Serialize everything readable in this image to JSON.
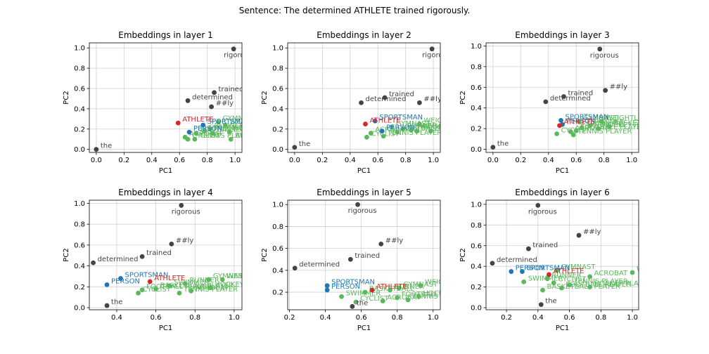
{
  "figure": {
    "suptitle": "Sentence: The determined ATHLETE trained rigorously."
  },
  "colors": {
    "sentence": "#444444",
    "athlete": "#d62728",
    "near": "#1f77b4",
    "other": "#5cb85c"
  },
  "chart_data": [
    {
      "type": "scatter",
      "title": "Embeddings in layer 1",
      "xlabel": "PC1",
      "ylabel": "PC2",
      "xlim": [
        -0.05,
        1.05
      ],
      "ylim": [
        -0.03,
        1.05
      ],
      "xticks": [
        0.0,
        0.2,
        0.4,
        0.6,
        0.8,
        1.0
      ],
      "yticks": [
        0.0,
        0.2,
        0.4,
        0.6,
        0.8,
        1.0
      ],
      "grid": true,
      "points": [
        {
          "label": "the",
          "x": 0.0,
          "y": 0.0,
          "group": "sentence"
        },
        {
          "label": "determined",
          "x": 0.66,
          "y": 0.48,
          "group": "sentence"
        },
        {
          "label": "trained",
          "x": 0.85,
          "y": 0.56,
          "group": "sentence"
        },
        {
          "label": "##ly",
          "x": 0.83,
          "y": 0.42,
          "group": "sentence"
        },
        {
          "label": "rigorous",
          "x": 0.99,
          "y": 0.99,
          "group": "sentence"
        },
        {
          "label": "ATHLETE",
          "x": 0.59,
          "y": 0.26,
          "group": "athlete"
        },
        {
          "label": "SPORTSMAN",
          "x": 0.77,
          "y": 0.24,
          "group": "near"
        },
        {
          "label": "PERSON",
          "x": 0.67,
          "y": 0.17,
          "group": "near"
        },
        {
          "label": "GYMNAST",
          "x": 0.88,
          "y": 0.27,
          "group": "other"
        },
        {
          "label": "WEIGHTLIFTER",
          "x": 0.93,
          "y": 0.24,
          "group": "other"
        },
        {
          "label": "RUNNER",
          "x": 0.82,
          "y": 0.2,
          "group": "other"
        },
        {
          "label": "SWIMMER",
          "x": 0.78,
          "y": 0.18,
          "group": "other"
        },
        {
          "label": "BASKETBALL PLAYER",
          "x": 0.84,
          "y": 0.16,
          "group": "other"
        },
        {
          "label": "HOCKEY PLAYER",
          "x": 0.96,
          "y": 0.17,
          "group": "other"
        },
        {
          "label": "FOOTBALL PLAYER",
          "x": 0.72,
          "y": 0.16,
          "group": "other"
        },
        {
          "label": "ACROBAT",
          "x": 0.64,
          "y": 0.12,
          "group": "other"
        },
        {
          "label": "CYCLIST",
          "x": 0.66,
          "y": 0.1,
          "group": "other"
        },
        {
          "label": "TENNIS PLAYER",
          "x": 0.71,
          "y": 0.1,
          "group": "other"
        },
        {
          "label": "BOXER",
          "x": 0.97,
          "y": 0.1,
          "group": "other"
        }
      ]
    },
    {
      "type": "scatter",
      "title": "Embeddings in layer 2",
      "xlabel": "PC1",
      "ylabel": "PC2",
      "xlim": [
        -0.05,
        1.05
      ],
      "ylim": [
        -0.03,
        1.05
      ],
      "xticks": [
        0.0,
        0.2,
        0.4,
        0.6,
        0.8,
        1.0
      ],
      "yticks": [
        0.0,
        0.2,
        0.4,
        0.6,
        0.8,
        1.0
      ],
      "grid": true,
      "points": [
        {
          "label": "the",
          "x": 0.0,
          "y": 0.02,
          "group": "sentence"
        },
        {
          "label": "determined",
          "x": 0.48,
          "y": 0.46,
          "group": "sentence"
        },
        {
          "label": "trained",
          "x": 0.65,
          "y": 0.51,
          "group": "sentence"
        },
        {
          "label": "##ly",
          "x": 0.9,
          "y": 0.46,
          "group": "sentence"
        },
        {
          "label": "rigorous",
          "x": 0.99,
          "y": 0.99,
          "group": "sentence"
        },
        {
          "label": "ATHLETE",
          "x": 0.51,
          "y": 0.25,
          "group": "athlete"
        },
        {
          "label": "SPORTSMAN",
          "x": 0.58,
          "y": 0.28,
          "group": "near"
        },
        {
          "label": "PERSON",
          "x": 0.63,
          "y": 0.18,
          "group": "near"
        },
        {
          "label": "WEIGHTLIFTER",
          "x": 0.9,
          "y": 0.25,
          "group": "other"
        },
        {
          "label": "GYMNAST",
          "x": 0.7,
          "y": 0.22,
          "group": "other"
        },
        {
          "label": "RUNNER",
          "x": 0.78,
          "y": 0.2,
          "group": "other"
        },
        {
          "label": "SWIMMER",
          "x": 0.84,
          "y": 0.19,
          "group": "other"
        },
        {
          "label": "BASKETBALL PLAYER",
          "x": 0.88,
          "y": 0.18,
          "group": "other"
        },
        {
          "label": "HOCKEY PLAYER",
          "x": 0.98,
          "y": 0.18,
          "group": "other"
        },
        {
          "label": "FOOTBALL PLAYER",
          "x": 0.74,
          "y": 0.17,
          "group": "other"
        },
        {
          "label": "ACROBAT",
          "x": 0.55,
          "y": 0.16,
          "group": "other"
        },
        {
          "label": "CYCLIST",
          "x": 0.52,
          "y": 0.12,
          "group": "other"
        },
        {
          "label": "TENNIS PLAYER",
          "x": 0.64,
          "y": 0.13,
          "group": "other"
        }
      ]
    },
    {
      "type": "scatter",
      "title": "Embeddings in layer 3",
      "xlabel": "PC1",
      "ylabel": "PC2",
      "xlim": [
        -0.05,
        1.05
      ],
      "ylim": [
        -0.03,
        1.03
      ],
      "xticks": [
        0.0,
        0.2,
        0.4,
        0.6,
        0.8,
        1.0
      ],
      "yticks": [
        0.0,
        0.2,
        0.4,
        0.6,
        0.8,
        1.0
      ],
      "grid": true,
      "points": [
        {
          "label": "the",
          "x": 0.0,
          "y": 0.02,
          "group": "sentence"
        },
        {
          "label": "determined",
          "x": 0.38,
          "y": 0.46,
          "group": "sentence"
        },
        {
          "label": "trained",
          "x": 0.51,
          "y": 0.51,
          "group": "sentence"
        },
        {
          "label": "##ly",
          "x": 0.81,
          "y": 0.57,
          "group": "sentence"
        },
        {
          "label": "rigorous",
          "x": 0.77,
          "y": 0.97,
          "group": "sentence"
        },
        {
          "label": "ATHLETE",
          "x": 0.48,
          "y": 0.23,
          "group": "athlete"
        },
        {
          "label": "SPORTSMAN",
          "x": 0.49,
          "y": 0.28,
          "group": "near"
        },
        {
          "label": "PERSON",
          "x": 0.5,
          "y": 0.24,
          "group": "near"
        },
        {
          "label": "GYMNAST",
          "x": 0.62,
          "y": 0.27,
          "group": "other"
        },
        {
          "label": "WEIGHTLIFTER",
          "x": 0.78,
          "y": 0.27,
          "group": "other"
        },
        {
          "label": "RUNNER",
          "x": 0.7,
          "y": 0.23,
          "group": "other"
        },
        {
          "label": "SWIMMER",
          "x": 0.64,
          "y": 0.21,
          "group": "other"
        },
        {
          "label": "BASKETBALL PLAYER",
          "x": 0.84,
          "y": 0.22,
          "group": "other"
        },
        {
          "label": "HOCKEY PLAYER",
          "x": 0.76,
          "y": 0.2,
          "group": "other"
        },
        {
          "label": "FOOTBALL PLAYER",
          "x": 0.6,
          "y": 0.18,
          "group": "other"
        },
        {
          "label": "ACROBAT",
          "x": 0.56,
          "y": 0.17,
          "group": "other"
        },
        {
          "label": "CYCLIST",
          "x": 0.46,
          "y": 0.15,
          "group": "other"
        },
        {
          "label": "TENNIS PLAYER",
          "x": 0.58,
          "y": 0.14,
          "group": "other"
        }
      ]
    },
    {
      "type": "scatter",
      "title": "Embeddings in layer 4",
      "xlabel": "PC1",
      "ylabel": "PC2",
      "xlim": [
        0.26,
        1.04
      ],
      "ylim": [
        -0.02,
        1.03
      ],
      "xticks": [
        0.4,
        0.6,
        0.8,
        1.0
      ],
      "yticks": [
        0.0,
        0.2,
        0.4,
        0.6,
        0.8,
        1.0
      ],
      "grid": true,
      "points": [
        {
          "label": "the",
          "x": 0.35,
          "y": 0.02,
          "group": "sentence"
        },
        {
          "label": "determined",
          "x": 0.28,
          "y": 0.43,
          "group": "sentence"
        },
        {
          "label": "trained",
          "x": 0.53,
          "y": 0.49,
          "group": "sentence"
        },
        {
          "label": "##ly",
          "x": 0.68,
          "y": 0.61,
          "group": "sentence"
        },
        {
          "label": "rigorous",
          "x": 0.73,
          "y": 0.98,
          "group": "sentence"
        },
        {
          "label": "ATHLETE",
          "x": 0.57,
          "y": 0.25,
          "group": "athlete"
        },
        {
          "label": "SPORTSMAN",
          "x": 0.42,
          "y": 0.28,
          "group": "near"
        },
        {
          "label": "PERSON",
          "x": 0.35,
          "y": 0.22,
          "group": "near"
        },
        {
          "label": "GYMNAST",
          "x": 0.87,
          "y": 0.27,
          "group": "other"
        },
        {
          "label": "WEIGHTLIFTER",
          "x": 0.94,
          "y": 0.27,
          "group": "other"
        },
        {
          "label": "RUNNER",
          "x": 0.75,
          "y": 0.23,
          "group": "other"
        },
        {
          "label": "SWIMMER",
          "x": 0.67,
          "y": 0.21,
          "group": "other"
        },
        {
          "label": "BASKETBALL PLAYER",
          "x": 0.6,
          "y": 0.18,
          "group": "other"
        },
        {
          "label": "HOCKEY PLAYER",
          "x": 0.88,
          "y": 0.19,
          "group": "other"
        },
        {
          "label": "FOOTBALL PLAYER",
          "x": 0.53,
          "y": 0.17,
          "group": "other"
        },
        {
          "label": "ACROBAT",
          "x": 0.78,
          "y": 0.16,
          "group": "other"
        },
        {
          "label": "CYCLIST",
          "x": 0.51,
          "y": 0.14,
          "group": "other"
        },
        {
          "label": "TENNIS PLAYER",
          "x": 0.72,
          "y": 0.14,
          "group": "other"
        }
      ]
    },
    {
      "type": "scatter",
      "title": "Embeddings in layer 5",
      "xlabel": "PC1",
      "ylabel": "PC2",
      "xlim": [
        0.19,
        1.04
      ],
      "ylim": [
        0.04,
        1.04
      ],
      "xticks": [
        0.2,
        0.4,
        0.6,
        0.8,
        1.0
      ],
      "yticks": [
        0.2,
        0.4,
        0.6,
        0.8,
        1.0
      ],
      "grid": true,
      "points": [
        {
          "label": "the",
          "x": 0.55,
          "y": 0.07,
          "group": "sentence"
        },
        {
          "label": "determined",
          "x": 0.23,
          "y": 0.42,
          "group": "sentence"
        },
        {
          "label": "trained",
          "x": 0.54,
          "y": 0.5,
          "group": "sentence"
        },
        {
          "label": "##ly",
          "x": 0.71,
          "y": 0.64,
          "group": "sentence"
        },
        {
          "label": "rigorous",
          "x": 0.58,
          "y": 1.0,
          "group": "sentence"
        },
        {
          "label": "ATHLETE",
          "x": 0.66,
          "y": 0.22,
          "group": "athlete"
        },
        {
          "label": "SPORTSMAN",
          "x": 0.41,
          "y": 0.26,
          "group": "near"
        },
        {
          "label": "PERSON",
          "x": 0.41,
          "y": 0.22,
          "group": "near"
        },
        {
          "label": "WEIGHTLIFTER",
          "x": 0.93,
          "y": 0.26,
          "group": "other"
        },
        {
          "label": "GYMNAST",
          "x": 0.81,
          "y": 0.24,
          "group": "other"
        },
        {
          "label": "RUNNER",
          "x": 0.76,
          "y": 0.22,
          "group": "other"
        },
        {
          "label": "BASKETBALL",
          "x": 0.62,
          "y": 0.2,
          "group": "other"
        },
        {
          "label": "HOCKEY PLAYER",
          "x": 0.92,
          "y": 0.16,
          "group": "other"
        },
        {
          "label": "FOOTBALL PLAYER",
          "x": 0.8,
          "y": 0.15,
          "group": "other"
        },
        {
          "label": "ACROBAT",
          "x": 0.72,
          "y": 0.12,
          "group": "other"
        },
        {
          "label": "CYCLIST",
          "x": 0.57,
          "y": 0.11,
          "group": "other"
        },
        {
          "label": "SWIMMER",
          "x": 0.49,
          "y": 0.16,
          "group": "other"
        },
        {
          "label": "TENNIS PLAYER",
          "x": 0.86,
          "y": 0.13,
          "group": "other"
        }
      ]
    },
    {
      "type": "scatter",
      "title": "Embeddings in layer 6",
      "xlabel": "PC1",
      "ylabel": "PC2",
      "xlim": [
        0.07,
        1.04
      ],
      "ylim": [
        -0.02,
        1.04
      ],
      "xticks": [
        0.2,
        0.4,
        0.6,
        0.8,
        1.0
      ],
      "yticks": [
        0.0,
        0.2,
        0.4,
        0.6,
        0.8,
        1.0
      ],
      "grid": true,
      "points": [
        {
          "label": "the",
          "x": 0.42,
          "y": 0.03,
          "group": "sentence"
        },
        {
          "label": "determined",
          "x": 0.11,
          "y": 0.43,
          "group": "sentence"
        },
        {
          "label": "trained",
          "x": 0.34,
          "y": 0.57,
          "group": "sentence"
        },
        {
          "label": "##ly",
          "x": 0.66,
          "y": 0.7,
          "group": "sentence"
        },
        {
          "label": "rigorous",
          "x": 0.4,
          "y": 0.99,
          "group": "sentence"
        },
        {
          "label": "ATHLETE",
          "x": 0.47,
          "y": 0.32,
          "group": "athlete"
        },
        {
          "label": "SPORTSMAN",
          "x": 0.3,
          "y": 0.35,
          "group": "near"
        },
        {
          "label": "PERSON",
          "x": 0.23,
          "y": 0.35,
          "group": "near"
        },
        {
          "label": "GYMNAST",
          "x": 0.52,
          "y": 0.36,
          "group": "other"
        },
        {
          "label": "WEIGHTLIFTER",
          "x": 1.0,
          "y": 0.34,
          "group": "other"
        },
        {
          "label": "ACROBAT",
          "x": 0.73,
          "y": 0.3,
          "group": "other"
        },
        {
          "label": "RUNNER",
          "x": 0.46,
          "y": 0.28,
          "group": "other"
        },
        {
          "label": "SWIMMER",
          "x": 0.31,
          "y": 0.25,
          "group": "other"
        },
        {
          "label": "CYCLIST",
          "x": 0.5,
          "y": 0.24,
          "group": "other"
        },
        {
          "label": "TENNIS PLAYER",
          "x": 0.6,
          "y": 0.22,
          "group": "other"
        },
        {
          "label": "HOCKEY PLAYER",
          "x": 0.73,
          "y": 0.2,
          "group": "other"
        },
        {
          "label": "FOOTBALL PLAYER",
          "x": 0.55,
          "y": 0.19,
          "group": "other"
        },
        {
          "label": "BASKETBALL PLAYER",
          "x": 0.43,
          "y": 0.17,
          "group": "other"
        }
      ]
    }
  ]
}
